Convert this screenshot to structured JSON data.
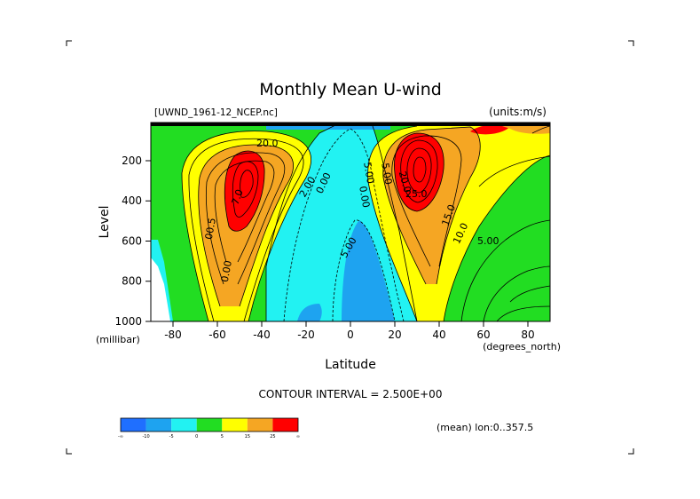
{
  "chart_data": {
    "type": "contour",
    "title": "Monthly Mean U-wind",
    "dataset_label": "[UWND_1961-12_NCEP.nc]",
    "units_label": "(units:m/s)",
    "xlabel": "Latitude",
    "x_unit_label": "(degrees_north)",
    "ylabel": "Level",
    "y_unit_label": "(millibar)",
    "xlim": [
      -90,
      90
    ],
    "ylim": [
      1000,
      10
    ],
    "x_ticks": [
      -80,
      -60,
      -40,
      -20,
      0,
      20,
      40,
      60,
      80
    ],
    "y_ticks": [
      200,
      400,
      600,
      800,
      1000
    ],
    "contour_interval_text": "CONTOUR INTERVAL = 2.500E+00",
    "mean_text": "(mean) lon:0..357.5",
    "contour_labels": [
      "20.0",
      "00.5",
      "0.00",
      "7.0",
      "2.00",
      "0.00",
      "5.00",
      "5.00",
      "0.00",
      "5.00",
      "20.0",
      "25.0",
      "15.0",
      "10.0",
      "5.00"
    ],
    "colorbar": {
      "colors": [
        "#1f6fff",
        "#1ea3f0",
        "#22f2f2",
        "#22dd22",
        "#ffff00",
        "#f5a623",
        "#ff0000"
      ],
      "labels": [
        "-∞",
        "-10",
        "-5",
        "0",
        "5",
        "15",
        "25",
        "∞"
      ]
    },
    "jets": [
      {
        "lat": -50,
        "level": 250,
        "max": 30
      },
      {
        "lat": 30,
        "level": 200,
        "max": 37.5
      }
    ]
  }
}
